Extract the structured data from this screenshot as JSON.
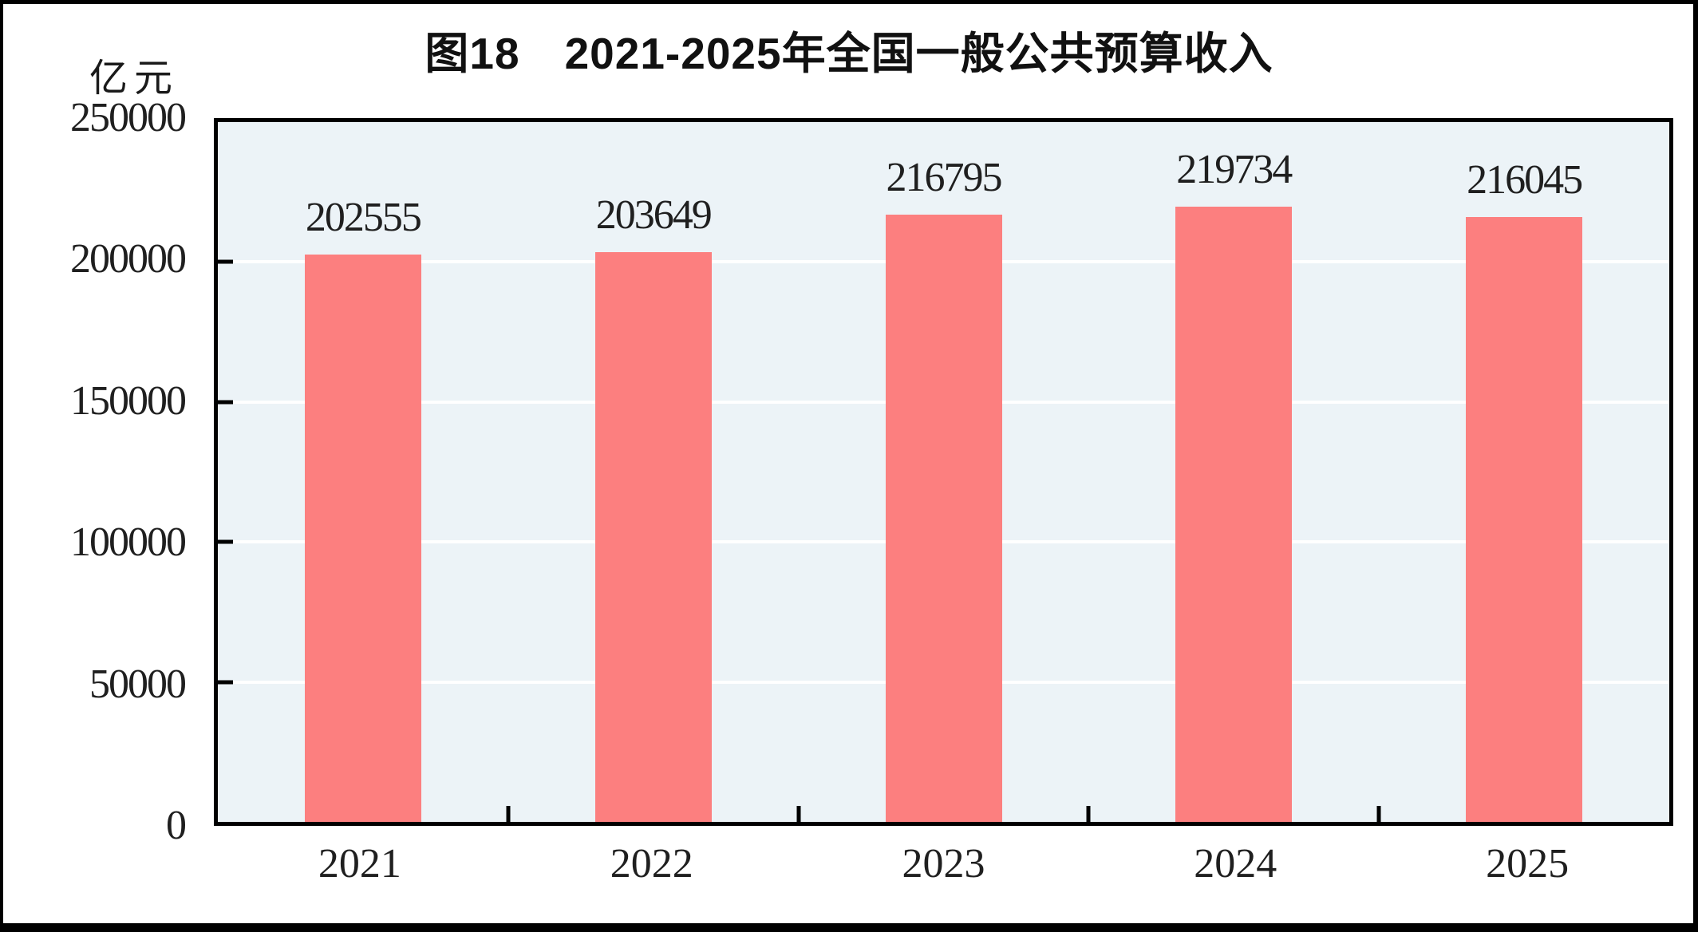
{
  "figure": {
    "display_title": "图18　2021-2025年全国一般公共预算收入"
  },
  "chart_data": {
    "type": "bar",
    "title": "图18 2021-2025年全国一般公共预算收入",
    "unit_label": "亿元",
    "categories": [
      "2021",
      "2022",
      "2023",
      "2024",
      "2025"
    ],
    "values": [
      202555,
      203649,
      216795,
      219734,
      216045
    ],
    "xlabel": "",
    "ylabel": "亿元",
    "ylim": [
      0,
      250000
    ],
    "ytick_interval": 50000,
    "yticks": [
      "0",
      "50000",
      "100000",
      "150000",
      "200000",
      "250000"
    ],
    "grid": "horizontal-white-lines",
    "legend": "none",
    "bar_color": "#fc7f7f",
    "plot_bg_color": "#ecf3f7",
    "gridline_color": "#ffffff",
    "axis_color": "#000000",
    "text_color": "#1f1f1f"
  }
}
